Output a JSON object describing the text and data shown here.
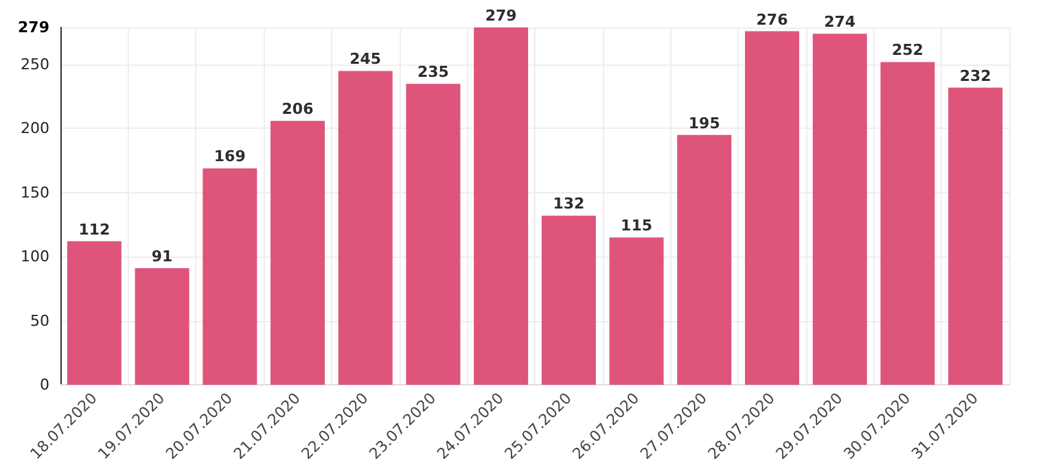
{
  "chart_data": {
    "type": "bar",
    "categories": [
      "18.07.2020",
      "19.07.2020",
      "20.07.2020",
      "21.07.2020",
      "22.07.2020",
      "23.07.2020",
      "24.07.2020",
      "25.07.2020",
      "26.07.2020",
      "27.07.2020",
      "28.07.2020",
      "29.07.2020",
      "30.07.2020",
      "31.07.2020"
    ],
    "values": [
      112,
      91,
      169,
      206,
      245,
      235,
      279,
      132,
      115,
      195,
      276,
      274,
      252,
      232
    ],
    "color": "#dc4b73",
    "ylim": [
      0,
      279
    ],
    "yticks": [
      0,
      50,
      100,
      150,
      200,
      250,
      279
    ],
    "grid": true,
    "data_labels": true
  }
}
